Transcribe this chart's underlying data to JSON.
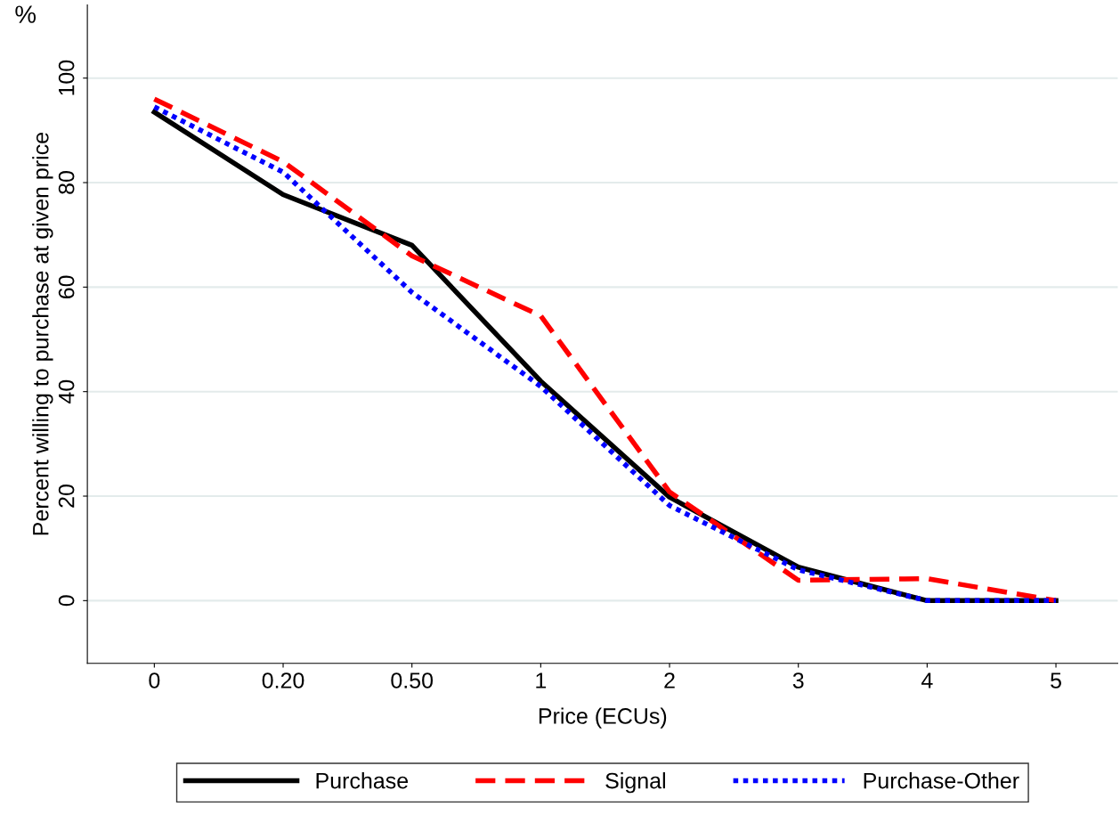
{
  "chart_data": {
    "type": "line",
    "xlabel": "Price (ECUs)",
    "ylabel": "Percent willing to purchase at given price",
    "categories": [
      "0",
      "0.20",
      "0.50",
      "1",
      "2",
      "3",
      "4",
      "5"
    ],
    "series": [
      {
        "name": "Purchase",
        "color": "#000000",
        "line_style": "solid",
        "values": [
          93.5,
          77.7,
          68,
          42,
          19.8,
          6.4,
          0,
          0
        ]
      },
      {
        "name": "Signal",
        "color": "#ff0000",
        "line_style": "dashed",
        "values": [
          96,
          84,
          66,
          54.5,
          20.8,
          3.9,
          4.2,
          0
        ]
      },
      {
        "name": "Purchase-Other",
        "color": "#0000ff",
        "line_style": "dotted",
        "values": [
          94.5,
          82,
          59,
          41,
          18.2,
          5.9,
          0,
          0
        ]
      }
    ],
    "ylim": [
      -12,
      114
    ],
    "yticks": [
      0,
      20,
      40,
      60,
      80,
      100
    ],
    "grid": "y",
    "legend": "bottom",
    "annotations": [
      "%"
    ]
  }
}
